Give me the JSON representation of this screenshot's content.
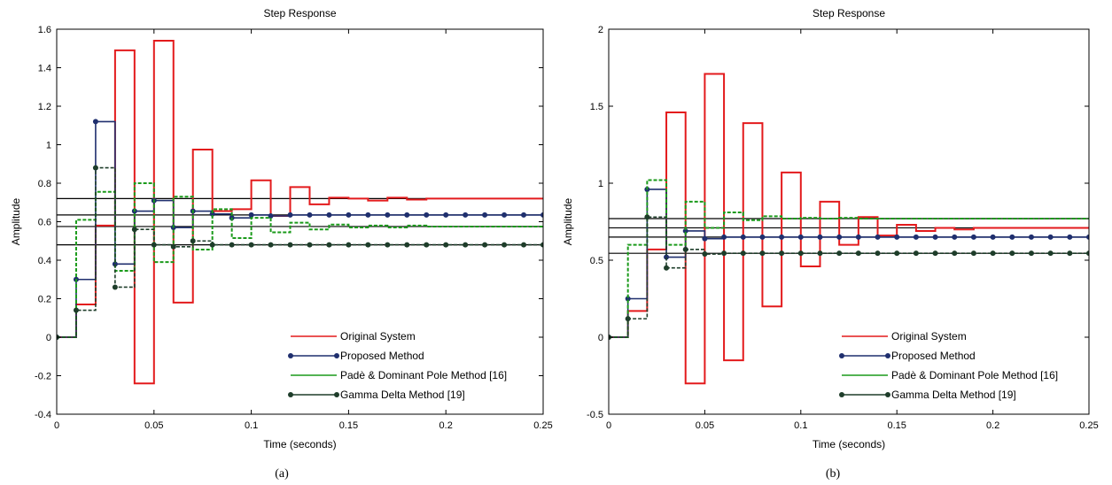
{
  "chart_data": [
    {
      "type": "line",
      "title": "Step Response",
      "xlabel": "Time (seconds)",
      "ylabel": "Amplitude",
      "caption": "(a)",
      "xlim": [
        0,
        0.25
      ],
      "ylim": [
        -0.4,
        1.6
      ],
      "xticks": [
        0,
        0.05,
        0.1,
        0.15,
        0.2,
        0.25
      ],
      "xtick_labels": [
        "0",
        "0.05",
        "0.1",
        "0.15",
        "0.2",
        "0.25"
      ],
      "yticks": [
        -0.4,
        -0.2,
        0,
        0.2,
        0.4,
        0.6,
        0.8,
        1,
        1.2,
        1.4,
        1.6
      ],
      "ytick_labels": [
        "-0.4",
        "-0.2",
        "0",
        "0.2",
        "0.4",
        "0.6",
        "0.8",
        "1",
        "1.2",
        "1.4",
        "1.6"
      ],
      "grid": false,
      "legend_position": "bottom-right",
      "step": 0.01,
      "steady_state_lines": [
        0.72,
        0.635,
        0.575,
        0.48
      ],
      "series": [
        {
          "name": "Original System",
          "color": "#e31a1c",
          "style": "solid",
          "markers": false,
          "values": [
            0,
            0.17,
            0.58,
            1.49,
            -0.24,
            1.54,
            0.18,
            0.975,
            0.655,
            0.665,
            0.815,
            0.63,
            0.78,
            0.69,
            0.725,
            0.72,
            0.71,
            0.725,
            0.715,
            0.72,
            0.72,
            0.72,
            0.72,
            0.72,
            0.72,
            0.72
          ]
        },
        {
          "name": "Proposed Method",
          "color": "#1f2f6e",
          "style": "solid",
          "markers": true,
          "values": [
            0,
            0.3,
            1.12,
            0.38,
            0.655,
            0.71,
            0.57,
            0.655,
            0.64,
            0.62,
            0.635,
            0.63,
            0.635,
            0.635,
            0.635,
            0.635,
            0.635,
            0.635,
            0.635,
            0.635,
            0.635,
            0.635,
            0.635,
            0.635,
            0.635,
            0.635
          ]
        },
        {
          "name": "Padè & Dominant Pole Method [16]",
          "color": "#1a9a1a",
          "style": "dashed",
          "markers": false,
          "values": [
            0,
            0.61,
            0.755,
            0.345,
            0.8,
            0.39,
            0.73,
            0.455,
            0.665,
            0.515,
            0.62,
            0.545,
            0.595,
            0.56,
            0.585,
            0.57,
            0.58,
            0.57,
            0.58,
            0.575,
            0.575,
            0.575,
            0.575,
            0.575,
            0.575,
            0.575
          ]
        },
        {
          "name": "Gamma Delta Method [19]",
          "color": "#1e3d2a",
          "style": "dashed",
          "markers": true,
          "values": [
            0,
            0.14,
            0.88,
            0.26,
            0.56,
            0.48,
            0.47,
            0.5,
            0.48,
            0.48,
            0.48,
            0.48,
            0.48,
            0.48,
            0.48,
            0.48,
            0.48,
            0.48,
            0.48,
            0.48,
            0.48,
            0.48,
            0.48,
            0.48,
            0.48,
            0.48
          ]
        }
      ]
    },
    {
      "type": "line",
      "title": "Step Response",
      "xlabel": "Time (seconds)",
      "ylabel": "Amplitude",
      "caption": "(b)",
      "xlim": [
        0,
        0.25
      ],
      "ylim": [
        -0.5,
        2
      ],
      "xticks": [
        0,
        0.05,
        0.1,
        0.15,
        0.2,
        0.25
      ],
      "xtick_labels": [
        "0",
        "0.05",
        "0.1",
        "0.15",
        "0.2",
        "0.25"
      ],
      "yticks": [
        -0.5,
        0,
        0.5,
        1,
        1.5,
        2
      ],
      "ytick_labels": [
        "-0.5",
        "0",
        "0.5",
        "1",
        "1.5",
        "2"
      ],
      "grid": false,
      "legend_position": "bottom-right",
      "step": 0.01,
      "steady_state_lines": [
        0.77,
        0.71,
        0.65,
        0.545
      ],
      "series": [
        {
          "name": "Original System",
          "color": "#e31a1c",
          "style": "solid",
          "markers": false,
          "values": [
            0,
            0.17,
            0.57,
            1.46,
            -0.3,
            1.71,
            -0.15,
            1.39,
            0.2,
            1.07,
            0.46,
            0.88,
            0.6,
            0.78,
            0.66,
            0.73,
            0.69,
            0.71,
            0.7,
            0.71,
            0.71,
            0.71,
            0.71,
            0.71,
            0.71,
            0.71
          ]
        },
        {
          "name": "Proposed Method",
          "color": "#1f2f6e",
          "style": "solid",
          "markers": true,
          "values": [
            0,
            0.25,
            0.96,
            0.52,
            0.69,
            0.64,
            0.65,
            0.65,
            0.65,
            0.65,
            0.65,
            0.65,
            0.65,
            0.65,
            0.65,
            0.65,
            0.65,
            0.65,
            0.65,
            0.65,
            0.65,
            0.65,
            0.65,
            0.65,
            0.65,
            0.65
          ]
        },
        {
          "name": "Padè & Dominant Pole Method [16]",
          "color": "#1a9a1a",
          "style": "dashed",
          "markers": false,
          "values": [
            0,
            0.6,
            1.02,
            0.6,
            0.88,
            0.71,
            0.81,
            0.76,
            0.785,
            0.77,
            0.775,
            0.77,
            0.775,
            0.77,
            0.77,
            0.77,
            0.77,
            0.77,
            0.77,
            0.77,
            0.77,
            0.77,
            0.77,
            0.77,
            0.77,
            0.77
          ]
        },
        {
          "name": "Gamma Delta Method [19]",
          "color": "#1e3d2a",
          "style": "dashed",
          "markers": true,
          "values": [
            0,
            0.12,
            0.78,
            0.45,
            0.57,
            0.54,
            0.545,
            0.545,
            0.545,
            0.545,
            0.545,
            0.545,
            0.545,
            0.545,
            0.545,
            0.545,
            0.545,
            0.545,
            0.545,
            0.545,
            0.545,
            0.545,
            0.545,
            0.545,
            0.545,
            0.545
          ]
        }
      ]
    }
  ]
}
